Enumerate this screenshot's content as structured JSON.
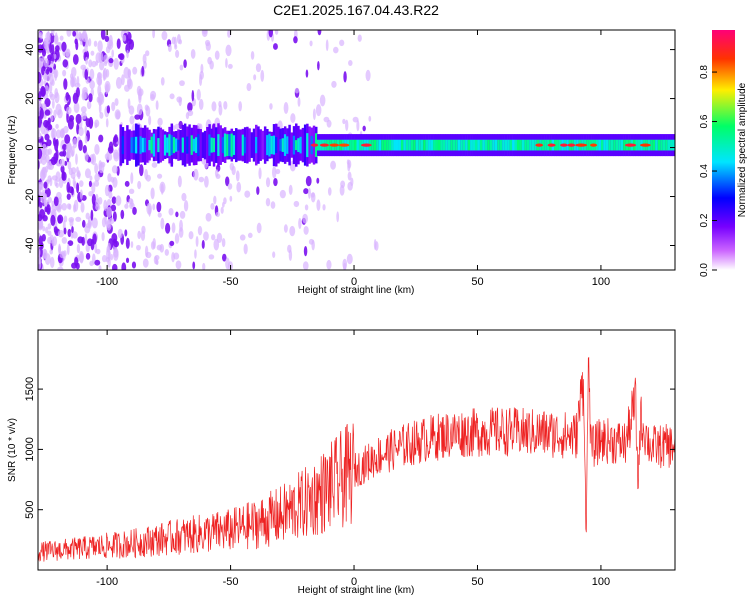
{
  "figure_title": "C2E1.2025.167.04.43.R22",
  "colors": {
    "snr_line": "#ee2222",
    "axis": "#000000",
    "colormap": [
      "#ffffff",
      "#cc66ff",
      "#7700ff",
      "#0000ff",
      "#00e5ff",
      "#00ff66",
      "#ffee00",
      "#ff3300",
      "#ff0077"
    ]
  },
  "chart_data": [
    {
      "type": "heatmap",
      "title": "",
      "xlabel": "Height of straight line (km)",
      "ylabel": "Frequency (Hz)",
      "xlim": [
        -128,
        130
      ],
      "ylim": [
        -50,
        48
      ],
      "x_ticks": [
        -100,
        -50,
        0,
        50,
        100
      ],
      "y_ticks": [
        -40,
        -20,
        0,
        20,
        40
      ],
      "colorbar": {
        "label": "Normalized spectral amplitude",
        "range": [
          0,
          0.97
        ],
        "ticks": [
          0.0,
          0.2,
          0.4,
          0.6,
          0.8
        ]
      },
      "features": {
        "noise_region_x": [
          -128,
          -20
        ],
        "signal_center_freq_hz": 1,
        "signal_band_start_x": -95,
        "narrowband_start_x": -15,
        "bright_spots_x": [
          -16,
          -12,
          -8,
          -4,
          5,
          75,
          80,
          85,
          88,
          92,
          97,
          112,
          118
        ]
      }
    },
    {
      "type": "line",
      "title": "",
      "xlabel": "Height of straight line (km)",
      "ylabel": "SNR (10 * v/v)",
      "xlim": [
        -128,
        130
      ],
      "ylim": [
        0,
        1990
      ],
      "x_ticks": [
        -100,
        -50,
        0,
        50,
        100
      ],
      "y_ticks": [
        500,
        1000,
        1500
      ],
      "series": [
        {
          "x": [
            -128,
            -110,
            -90,
            -70,
            -50,
            -40,
            -30,
            -20,
            -10,
            0,
            10,
            20,
            30,
            40,
            50,
            60,
            70,
            80,
            90,
            93,
            94,
            95,
            96,
            100,
            110,
            114,
            115,
            116,
            120,
            130
          ],
          "y": [
            150,
            180,
            220,
            280,
            330,
            380,
            450,
            550,
            680,
            820,
            950,
            1030,
            1090,
            1130,
            1140,
            1150,
            1140,
            1130,
            1110,
            1600,
            250,
            1800,
            1000,
            1080,
            1050,
            1400,
            700,
            1250,
            1020,
            1030
          ]
        }
      ]
    }
  ]
}
